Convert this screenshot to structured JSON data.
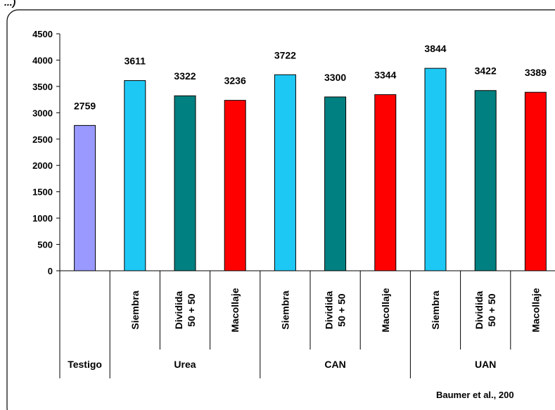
{
  "header_fragment": "...)",
  "chart_data": {
    "type": "bar",
    "title": "",
    "xlabel": "",
    "ylabel": "",
    "ylim": [
      0,
      4500
    ],
    "yticks": [
      0,
      500,
      1000,
      1500,
      2000,
      2500,
      3000,
      3500,
      4000,
      4500
    ],
    "grid": false,
    "legend": "none",
    "categories": [
      "Testigo",
      "Siembra",
      "Dividida 50 + 50",
      "Macollaje",
      "Siembra",
      "Dividida 50 + 50",
      "Macollaje",
      "Siembra",
      "Dividida 50 + 50",
      "Macollaje"
    ],
    "values": [
      2759,
      3611,
      3322,
      3236,
      3722,
      3300,
      3344,
      3844,
      3422,
      3389
    ],
    "data_labels": [
      "2759",
      "3611",
      "3322",
      "3236",
      "3722",
      "3300",
      "3344",
      "3844",
      "3422",
      "3389"
    ],
    "bar_colors": [
      "#9999ff",
      "#1ec8f5",
      "#008080",
      "#ff0000",
      "#1ec8f5",
      "#008080",
      "#ff0000",
      "#1ec8f5",
      "#008080",
      "#ff0000"
    ],
    "timing_labels": [
      {
        "text": "Siembra"
      },
      {
        "line1": "Dividida",
        "line2": "50 + 50"
      },
      {
        "text": "Macollaje"
      }
    ],
    "groups": [
      {
        "label": "Testigo",
        "members": 1
      },
      {
        "label": "Urea",
        "members": 3
      },
      {
        "label": "CAN",
        "members": 3
      },
      {
        "label": "UAN",
        "members": 3
      }
    ],
    "annotation": "Baumer et al., 200"
  }
}
